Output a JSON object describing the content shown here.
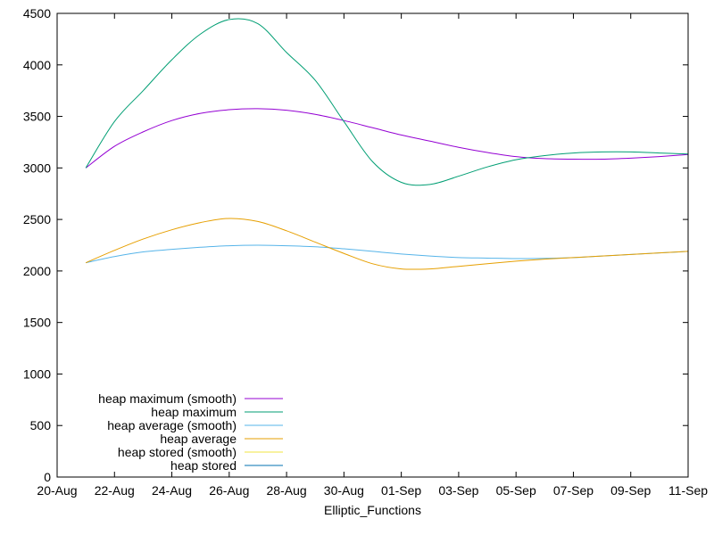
{
  "chart_data": {
    "type": "line",
    "title": "",
    "xlabel": "Elliptic_Functions",
    "ylabel": "",
    "x_start_date": "2024-08-20",
    "x_ticks": [
      "20-Aug",
      "22-Aug",
      "24-Aug",
      "26-Aug",
      "28-Aug",
      "30-Aug",
      "01-Sep",
      "03-Sep",
      "05-Sep",
      "07-Sep",
      "09-Sep",
      "11-Sep"
    ],
    "xlim": [
      "20-Aug",
      "11-Sep"
    ],
    "ylim": [
      0,
      4500
    ],
    "y_ticks": [
      0,
      500,
      1000,
      1500,
      2000,
      2500,
      3000,
      3500,
      4000,
      4500
    ],
    "grid": false,
    "legend_position": "bottom-left",
    "series": [
      {
        "name": "heap maximum (smooth)",
        "color": "#9400d3",
        "x": [
          "21-Aug",
          "22-Aug",
          "23-Aug",
          "24-Aug",
          "25-Aug",
          "26-Aug",
          "27-Aug",
          "28-Aug",
          "29-Aug",
          "30-Aug",
          "31-Aug",
          "01-Sep",
          "02-Sep",
          "03-Sep",
          "04-Sep",
          "05-Sep",
          "06-Sep",
          "07-Sep",
          "08-Sep",
          "09-Sep",
          "10-Sep",
          "11-Sep"
        ],
        "values": [
          3000,
          3210,
          3350,
          3460,
          3530,
          3565,
          3575,
          3560,
          3520,
          3460,
          3390,
          3320,
          3260,
          3200,
          3150,
          3110,
          3090,
          3085,
          3085,
          3095,
          3110,
          3130
        ]
      },
      {
        "name": "heap maximum",
        "color": "#009e73",
        "x": [
          "21-Aug",
          "22-Aug",
          "23-Aug",
          "24-Aug",
          "25-Aug",
          "26-Aug",
          "27-Aug",
          "28-Aug",
          "29-Aug",
          "30-Aug",
          "31-Aug",
          "01-Sep",
          "02-Sep",
          "03-Sep",
          "04-Sep",
          "05-Sep",
          "06-Sep",
          "07-Sep",
          "08-Sep",
          "09-Sep",
          "10-Sep",
          "11-Sep"
        ],
        "values": [
          3000,
          3450,
          3750,
          4050,
          4300,
          4440,
          4400,
          4120,
          3850,
          3450,
          3060,
          2860,
          2840,
          2920,
          3010,
          3080,
          3120,
          3145,
          3155,
          3155,
          3145,
          3135
        ]
      },
      {
        "name": "heap average (smooth)",
        "color": "#56b4e9",
        "x": [
          "21-Aug",
          "22-Aug",
          "23-Aug",
          "24-Aug",
          "25-Aug",
          "26-Aug",
          "27-Aug",
          "28-Aug",
          "29-Aug",
          "30-Aug",
          "31-Aug",
          "01-Sep",
          "02-Sep",
          "03-Sep",
          "04-Sep",
          "05-Sep",
          "06-Sep",
          "07-Sep",
          "08-Sep",
          "09-Sep",
          "10-Sep",
          "11-Sep"
        ],
        "values": [
          2080,
          2140,
          2185,
          2210,
          2230,
          2245,
          2250,
          2245,
          2235,
          2215,
          2190,
          2165,
          2145,
          2130,
          2125,
          2120,
          2122,
          2130,
          2145,
          2160,
          2175,
          2190
        ]
      },
      {
        "name": "heap average",
        "color": "#e69f00",
        "x": [
          "21-Aug",
          "22-Aug",
          "23-Aug",
          "24-Aug",
          "25-Aug",
          "26-Aug",
          "27-Aug",
          "28-Aug",
          "29-Aug",
          "30-Aug",
          "31-Aug",
          "01-Sep",
          "02-Sep",
          "03-Sep",
          "04-Sep",
          "05-Sep",
          "06-Sep",
          "07-Sep",
          "08-Sep",
          "09-Sep",
          "10-Sep",
          "11-Sep"
        ],
        "values": [
          2080,
          2200,
          2310,
          2400,
          2470,
          2510,
          2480,
          2390,
          2280,
          2170,
          2070,
          2020,
          2020,
          2045,
          2070,
          2095,
          2115,
          2130,
          2145,
          2160,
          2175,
          2190
        ]
      },
      {
        "name": "heap stored (smooth)",
        "color": "#f0e442",
        "x": [],
        "values": []
      },
      {
        "name": "heap stored",
        "color": "#0072b2",
        "x": [],
        "values": []
      }
    ]
  }
}
